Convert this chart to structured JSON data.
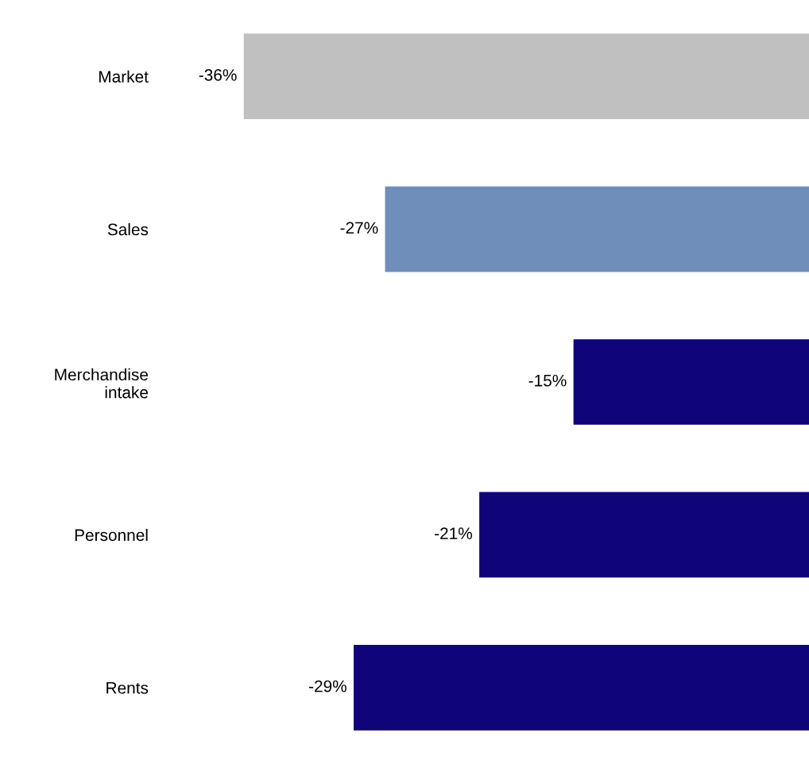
{
  "chart_data": {
    "type": "bar",
    "orientation": "horizontal",
    "categories": [
      "Market",
      "Sales",
      "Merchandise\nintake",
      "Personnel",
      "Rents"
    ],
    "values": [
      -36,
      -27,
      -15,
      -21,
      -29
    ],
    "colors": [
      "#c0c0c0",
      "#6f8fba",
      "#10047a",
      "#10047a",
      "#10047a"
    ],
    "value_labels": [
      "-36%",
      "-27%",
      "-15%",
      "-21%",
      "-29%"
    ],
    "tick_labels": "y",
    "grid": false,
    "legend": false
  }
}
